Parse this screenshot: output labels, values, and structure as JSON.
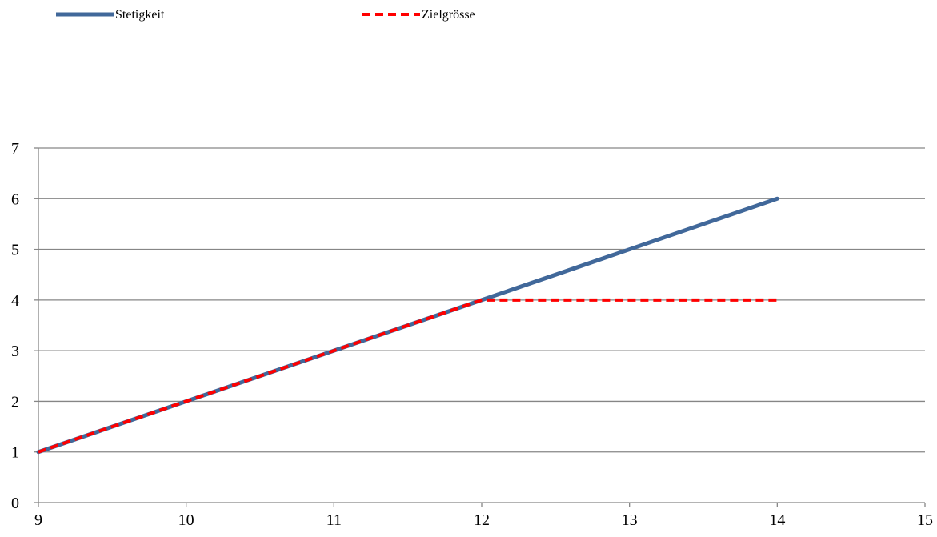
{
  "chart_data": {
    "type": "line",
    "title": "",
    "xlabel": "",
    "ylabel": "",
    "xlim": [
      9,
      15
    ],
    "ylim": [
      0,
      7
    ],
    "xticks": [
      9,
      10,
      11,
      12,
      13,
      14,
      15
    ],
    "yticks": [
      0,
      1,
      2,
      3,
      4,
      5,
      6,
      7
    ],
    "grid": "horizontal",
    "legend_position": "top",
    "series": [
      {
        "name": "Stetigkeit",
        "style": "solid",
        "color": "#41689a",
        "x": [
          9,
          10,
          11,
          12,
          13,
          14
        ],
        "y": [
          1,
          2,
          3,
          4,
          5,
          6
        ]
      },
      {
        "name": "Zielgrösse",
        "style": "dashed",
        "color": "#ff0000",
        "x": [
          9,
          10,
          11,
          12,
          13,
          14
        ],
        "y": [
          1,
          2,
          3,
          4,
          4,
          4
        ]
      }
    ]
  }
}
